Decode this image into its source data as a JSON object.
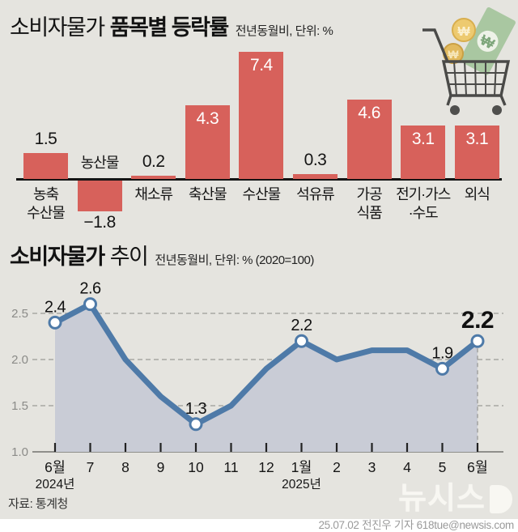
{
  "header1": {
    "title_light": "소비자물가",
    "title_bold": "품목별 등락률",
    "subtitle": "전년동월비, 단위: %"
  },
  "header2": {
    "title_bold": "소비자물가",
    "title_light": "추이",
    "subtitle": "전년동월비, 단위: % (2020=100)"
  },
  "colors": {
    "background": "#e5e4df",
    "bar_red": "#d7615b",
    "line_blue": "#4e7aa8",
    "area_fill": "#c9ccd6",
    "grid_gray": "#a8a8a4",
    "axis_gray": "#8f8f8b",
    "text_dark": "#141414"
  },
  "icons": {
    "cart_icon": "shopping-cart-with-coins-and-banknote",
    "banknote_symbol": "₩",
    "coin_symbol": "₩"
  },
  "chart_data": [
    {
      "type": "bar",
      "title": "소비자물가 품목별 등락률",
      "subtitle": "전년동월비, 단위: %",
      "categories": [
        "농축수산물",
        "농산물",
        "채소류",
        "축산물",
        "수산물",
        "석유류",
        "가공식품",
        "전기·가스·수도",
        "외식"
      ],
      "category_lines": [
        [
          "농축",
          "수산물"
        ],
        [
          "농산물"
        ],
        [
          "채소류"
        ],
        [
          "축산물"
        ],
        [
          "수산물"
        ],
        [
          "석유류"
        ],
        [
          "가공",
          "식품"
        ],
        [
          "전기·가스",
          "·수도"
        ],
        [
          "외식"
        ]
      ],
      "values": [
        1.5,
        -1.8,
        0.2,
        4.3,
        7.4,
        0.3,
        4.6,
        3.1,
        3.1
      ],
      "value_labels": [
        "1.5",
        "−1.8",
        "0.2",
        "4.3",
        "7.4",
        "0.3",
        "4.6",
        "3.1",
        "3.1"
      ],
      "unit": "%",
      "grid": false
    },
    {
      "type": "area",
      "title": "소비자물가 추이",
      "subtitle": "전년동월비, 단위: % (2020=100)",
      "x": [
        "6월",
        "7",
        "8",
        "9",
        "10",
        "11",
        "12",
        "1월",
        "2",
        "3",
        "4",
        "5",
        "6월"
      ],
      "x_sub": {
        "0": "2024년",
        "7": "2025년"
      },
      "values": [
        2.4,
        2.6,
        2.0,
        1.6,
        1.3,
        1.5,
        1.9,
        2.2,
        2.0,
        2.1,
        2.1,
        1.9,
        2.2
      ],
      "labeled_points": [
        0,
        1,
        4,
        7,
        11,
        12
      ],
      "point_labels": [
        "2.4",
        "2.6",
        "1.3",
        "2.2",
        "1.9",
        "2.2"
      ],
      "emphasis_point": 12,
      "ylim": [
        1.0,
        2.75
      ],
      "yticks": [
        1.0,
        1.5,
        2.0,
        2.5
      ],
      "grid": true,
      "legend": "none"
    }
  ],
  "footer": {
    "source": "자료: 통계청",
    "logo": "뉴시스",
    "credit": "25.07.02 전진우 기자 618tue@newsis.com"
  }
}
